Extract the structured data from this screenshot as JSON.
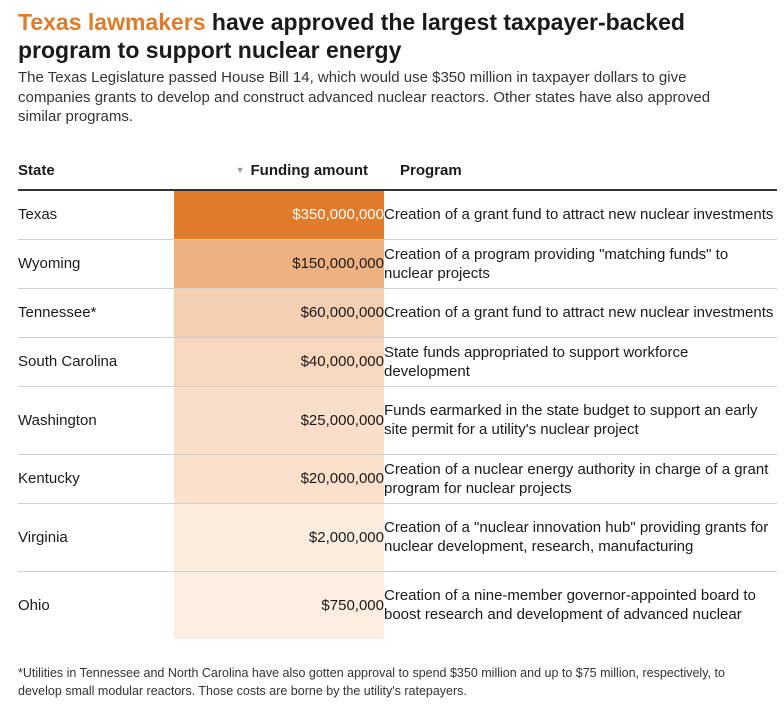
{
  "headline": {
    "accent": "Texas lawmakers",
    "rest": " have approved the largest taxpayer-backed program to support nuclear energy"
  },
  "subtitle": "The Texas Legislature passed House Bill 14, which would use $350 million in taxpayer dollars to give companies grants to develop and construct advanced nuclear reactors. Other states have also approved similar programs.",
  "footnote": "*Utilities in Tennessee and North Carolina have also gotten approval to spend $350 million and up to $75 million, respectively, to develop small modular reactors. Those costs are borne by the utility's ratepayers.",
  "colors": {
    "accent": "#e07b2a",
    "heat_low": "#fdeee2",
    "heat_high": "#e07b2a"
  },
  "chart_data": {
    "type": "table",
    "columns": [
      "State",
      "Funding amount",
      "Program"
    ],
    "sorted_by": "Funding amount",
    "sort_order": "descending",
    "rows": [
      {
        "state": "Texas",
        "amount": 350000000,
        "amount_label": "$350,000,000",
        "program": "Creation of a grant fund to attract new nuclear investments"
      },
      {
        "state": "Wyoming",
        "amount": 150000000,
        "amount_label": "$150,000,000",
        "program": "Creation of a program providing \"matching funds\" to nuclear projects"
      },
      {
        "state": "Tennessee*",
        "amount": 60000000,
        "amount_label": "$60,000,000",
        "program": "Creation of a grant fund to attract new nuclear investments"
      },
      {
        "state": "South Carolina",
        "amount": 40000000,
        "amount_label": "$40,000,000",
        "program": "State funds appropriated to support workforce development"
      },
      {
        "state": "Washington",
        "amount": 25000000,
        "amount_label": "$25,000,000",
        "program": "Funds earmarked in the state budget to support an early site permit for a utility's nuclear project"
      },
      {
        "state": "Kentucky",
        "amount": 20000000,
        "amount_label": "$20,000,000",
        "program": "Creation of a nuclear energy authority in charge of a grant program for nuclear projects"
      },
      {
        "state": "Virginia",
        "amount": 2000000,
        "amount_label": "$2,000,000",
        "program": "Creation of a \"nuclear innovation hub\" providing grants for nuclear development, research, manufacturing"
      },
      {
        "state": "Ohio",
        "amount": 750000,
        "amount_label": "$750,000",
        "program": "Creation of a nine-member governor-appointed board to boost research and development of advanced nuclear"
      }
    ]
  }
}
